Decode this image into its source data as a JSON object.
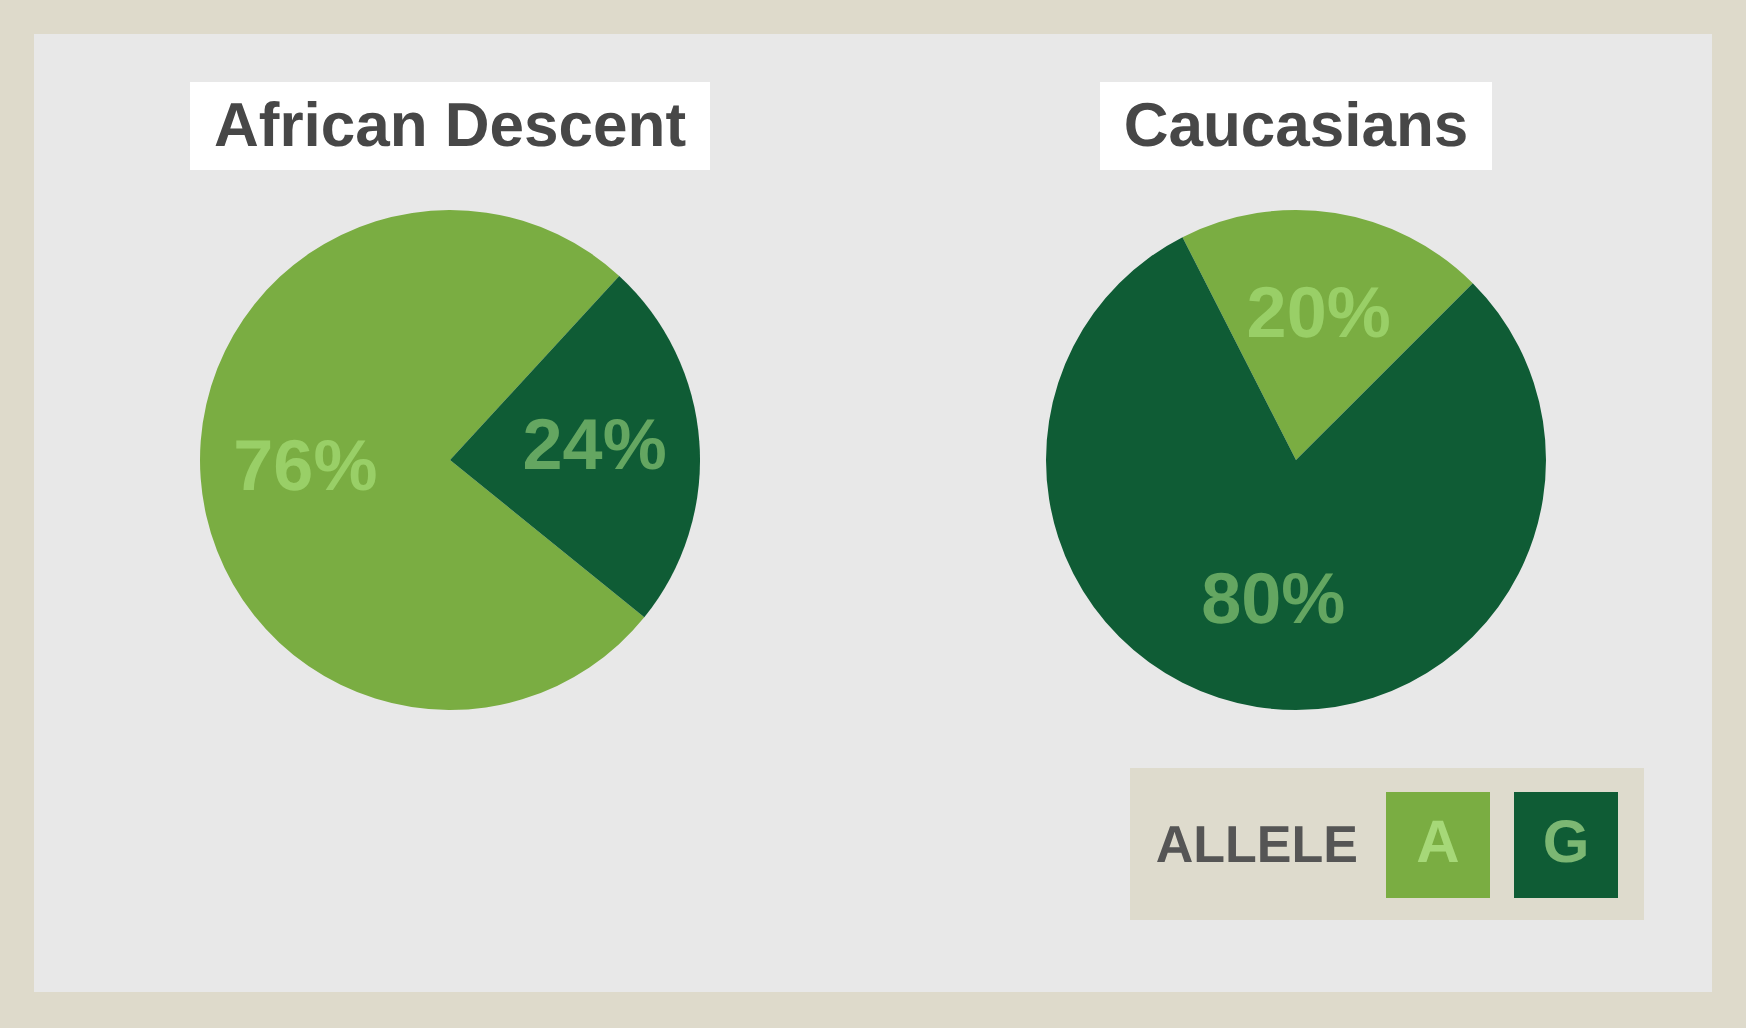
{
  "chart_data": [
    {
      "type": "pie",
      "title": "African Descent",
      "categories": [
        null,
        null
      ],
      "values": [
        76,
        24
      ],
      "colors": [
        "#7aad42",
        "#0f5c35"
      ],
      "value_labels": [
        "76%",
        "24%"
      ]
    },
    {
      "type": "pie",
      "title": "Caucasians",
      "categories": [
        "A",
        "G"
      ],
      "values": [
        20,
        80
      ],
      "colors": [
        "#7aad42",
        "#0f5c35"
      ],
      "value_labels": [
        "20%",
        "80%"
      ],
      "legend": "bottom right",
      "legend_title": "ALLELE"
    }
  ]
}
